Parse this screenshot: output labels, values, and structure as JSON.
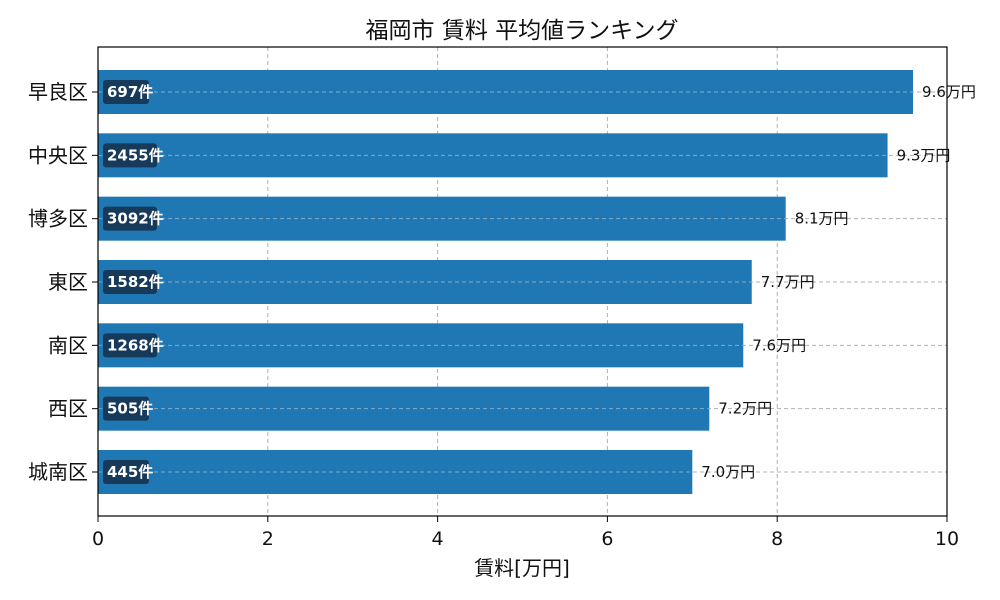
{
  "chart_data": {
    "type": "bar",
    "orientation": "horizontal",
    "title": "福岡市 賃料 平均値ランキング",
    "xlabel": "賃料[万円]",
    "ylabel": "",
    "xlim": [
      0,
      10
    ],
    "x_ticks": [
      "0",
      "2",
      "4",
      "6",
      "8",
      "10"
    ],
    "grid": true,
    "bar_color": "#1f77b4",
    "badge_color": "#173a5a",
    "categories": [
      "早良区",
      "中央区",
      "博多区",
      "東区",
      "南区",
      "西区",
      "城南区"
    ],
    "values": [
      9.6,
      9.3,
      8.1,
      7.7,
      7.6,
      7.2,
      7.0
    ],
    "value_labels": [
      "9.6万円",
      "9.3万円",
      "8.1万円",
      "7.7万円",
      "7.6万円",
      "7.2万円",
      "7.0万円"
    ],
    "count_labels": [
      "697件",
      "2455件",
      "3092件",
      "1582件",
      "1268件",
      "505件",
      "445件"
    ]
  }
}
